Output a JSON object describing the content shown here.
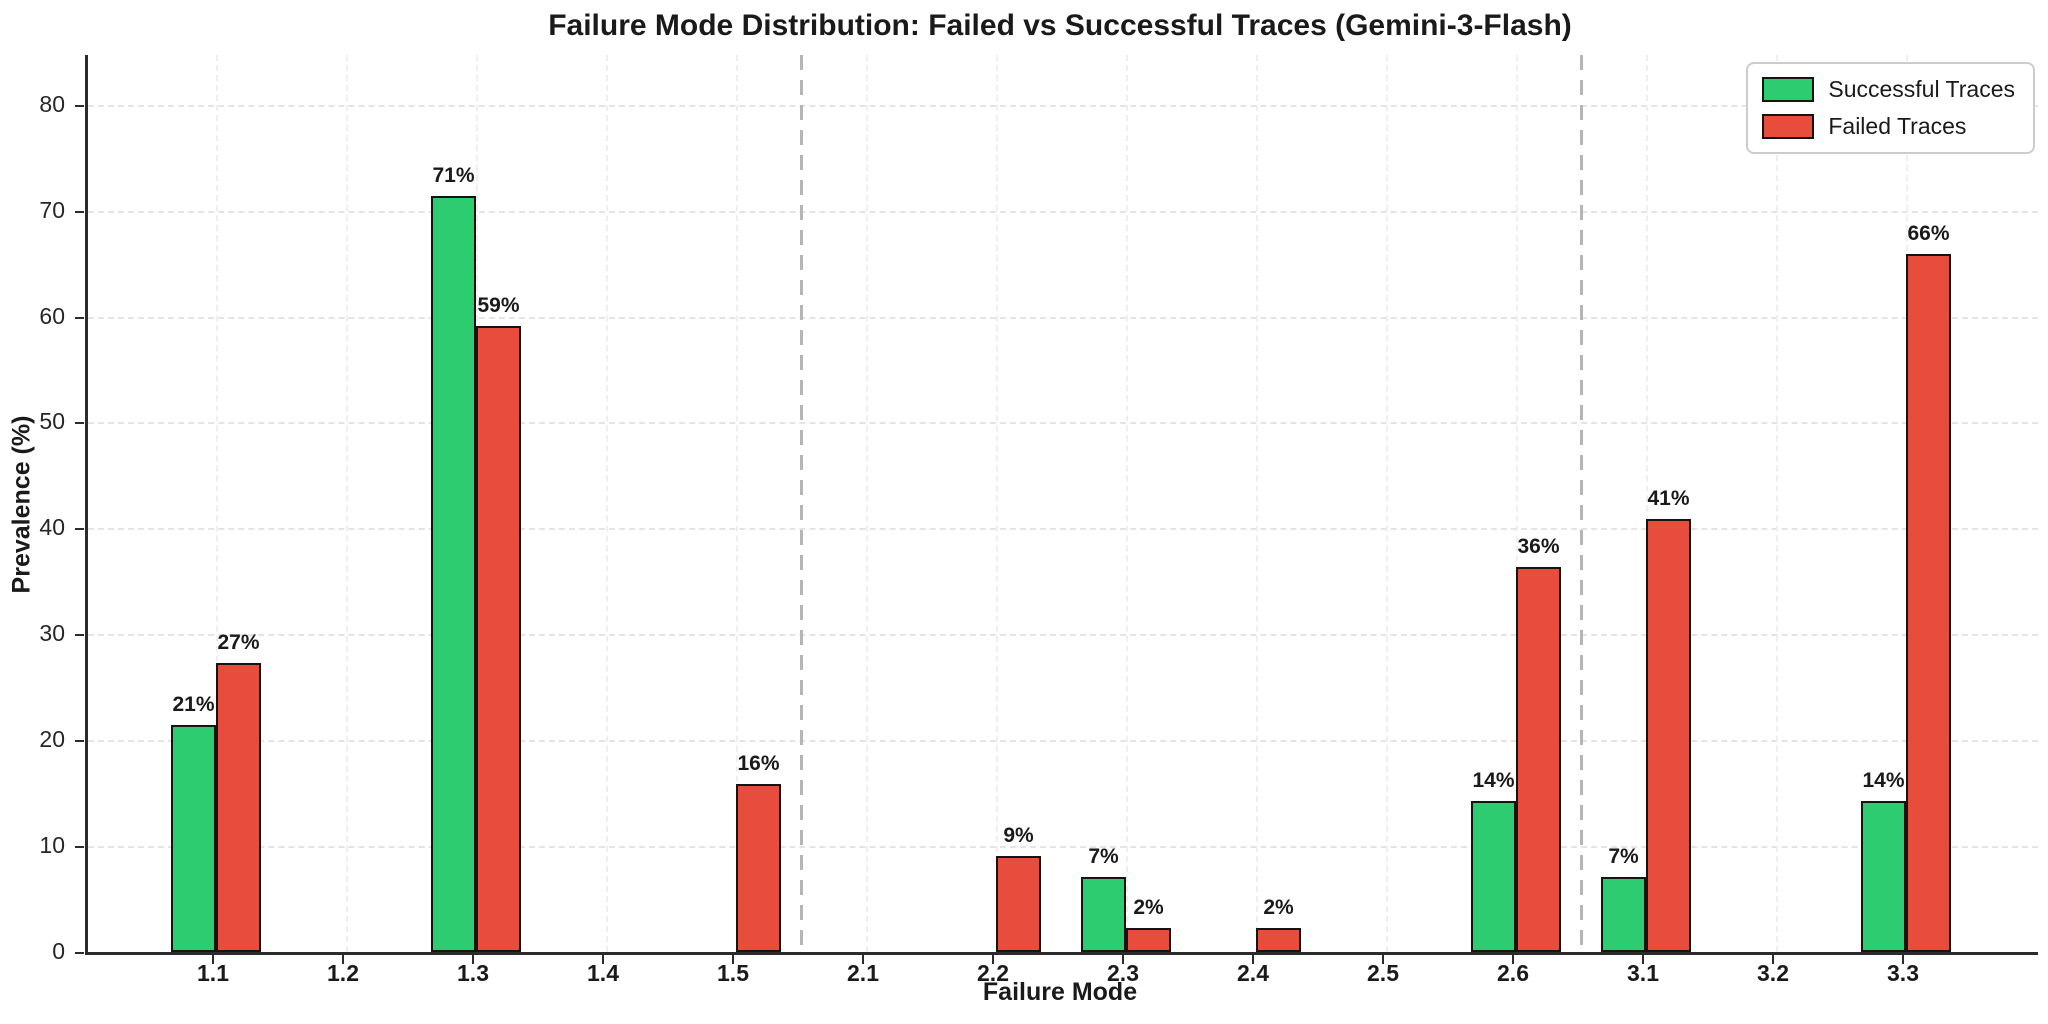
{
  "chart_data": {
    "type": "bar",
    "title": "Failure Mode Distribution: Failed vs Successful Traces (Gemini-3-Flash)",
    "xlabel": "Failure Mode",
    "ylabel": "Prevalence (%)",
    "categories": [
      "1.1",
      "1.2",
      "1.3",
      "1.4",
      "1.5",
      "2.1",
      "2.2",
      "2.3",
      "2.4",
      "2.5",
      "2.6",
      "3.1",
      "3.2",
      "3.3"
    ],
    "series": [
      {
        "name": "Successful Traces",
        "color": "#2ecc71",
        "values": [
          21.4,
          0,
          71.4,
          0,
          0,
          0,
          0,
          7.1,
          0,
          0,
          14.3,
          7.1,
          0,
          14.3
        ],
        "labels": [
          "21%",
          "",
          "71%",
          "",
          "",
          "",
          "",
          "7%",
          "",
          "",
          "14%",
          "7%",
          "",
          "14%"
        ]
      },
      {
        "name": "Failed Traces",
        "color": "#e74c3c",
        "values": [
          27.3,
          0,
          59.1,
          0,
          15.9,
          0,
          9.1,
          2.3,
          2.3,
          0,
          36.4,
          40.9,
          0,
          65.9
        ],
        "labels": [
          "27%",
          "",
          "59%",
          "",
          "16%",
          "",
          "9%",
          "2%",
          "2%",
          "",
          "36%",
          "41%",
          "",
          "66%"
        ]
      }
    ],
    "yticks": [
      0,
      10,
      20,
      30,
      40,
      50,
      60,
      70,
      80
    ],
    "ylim": [
      0,
      84.7
    ],
    "grid": true,
    "legend_position": "top-right",
    "separators_after": [
      "1.5",
      "2.6"
    ],
    "bar_edge_color": "#141414",
    "separator_color": "#b5b5b5"
  }
}
